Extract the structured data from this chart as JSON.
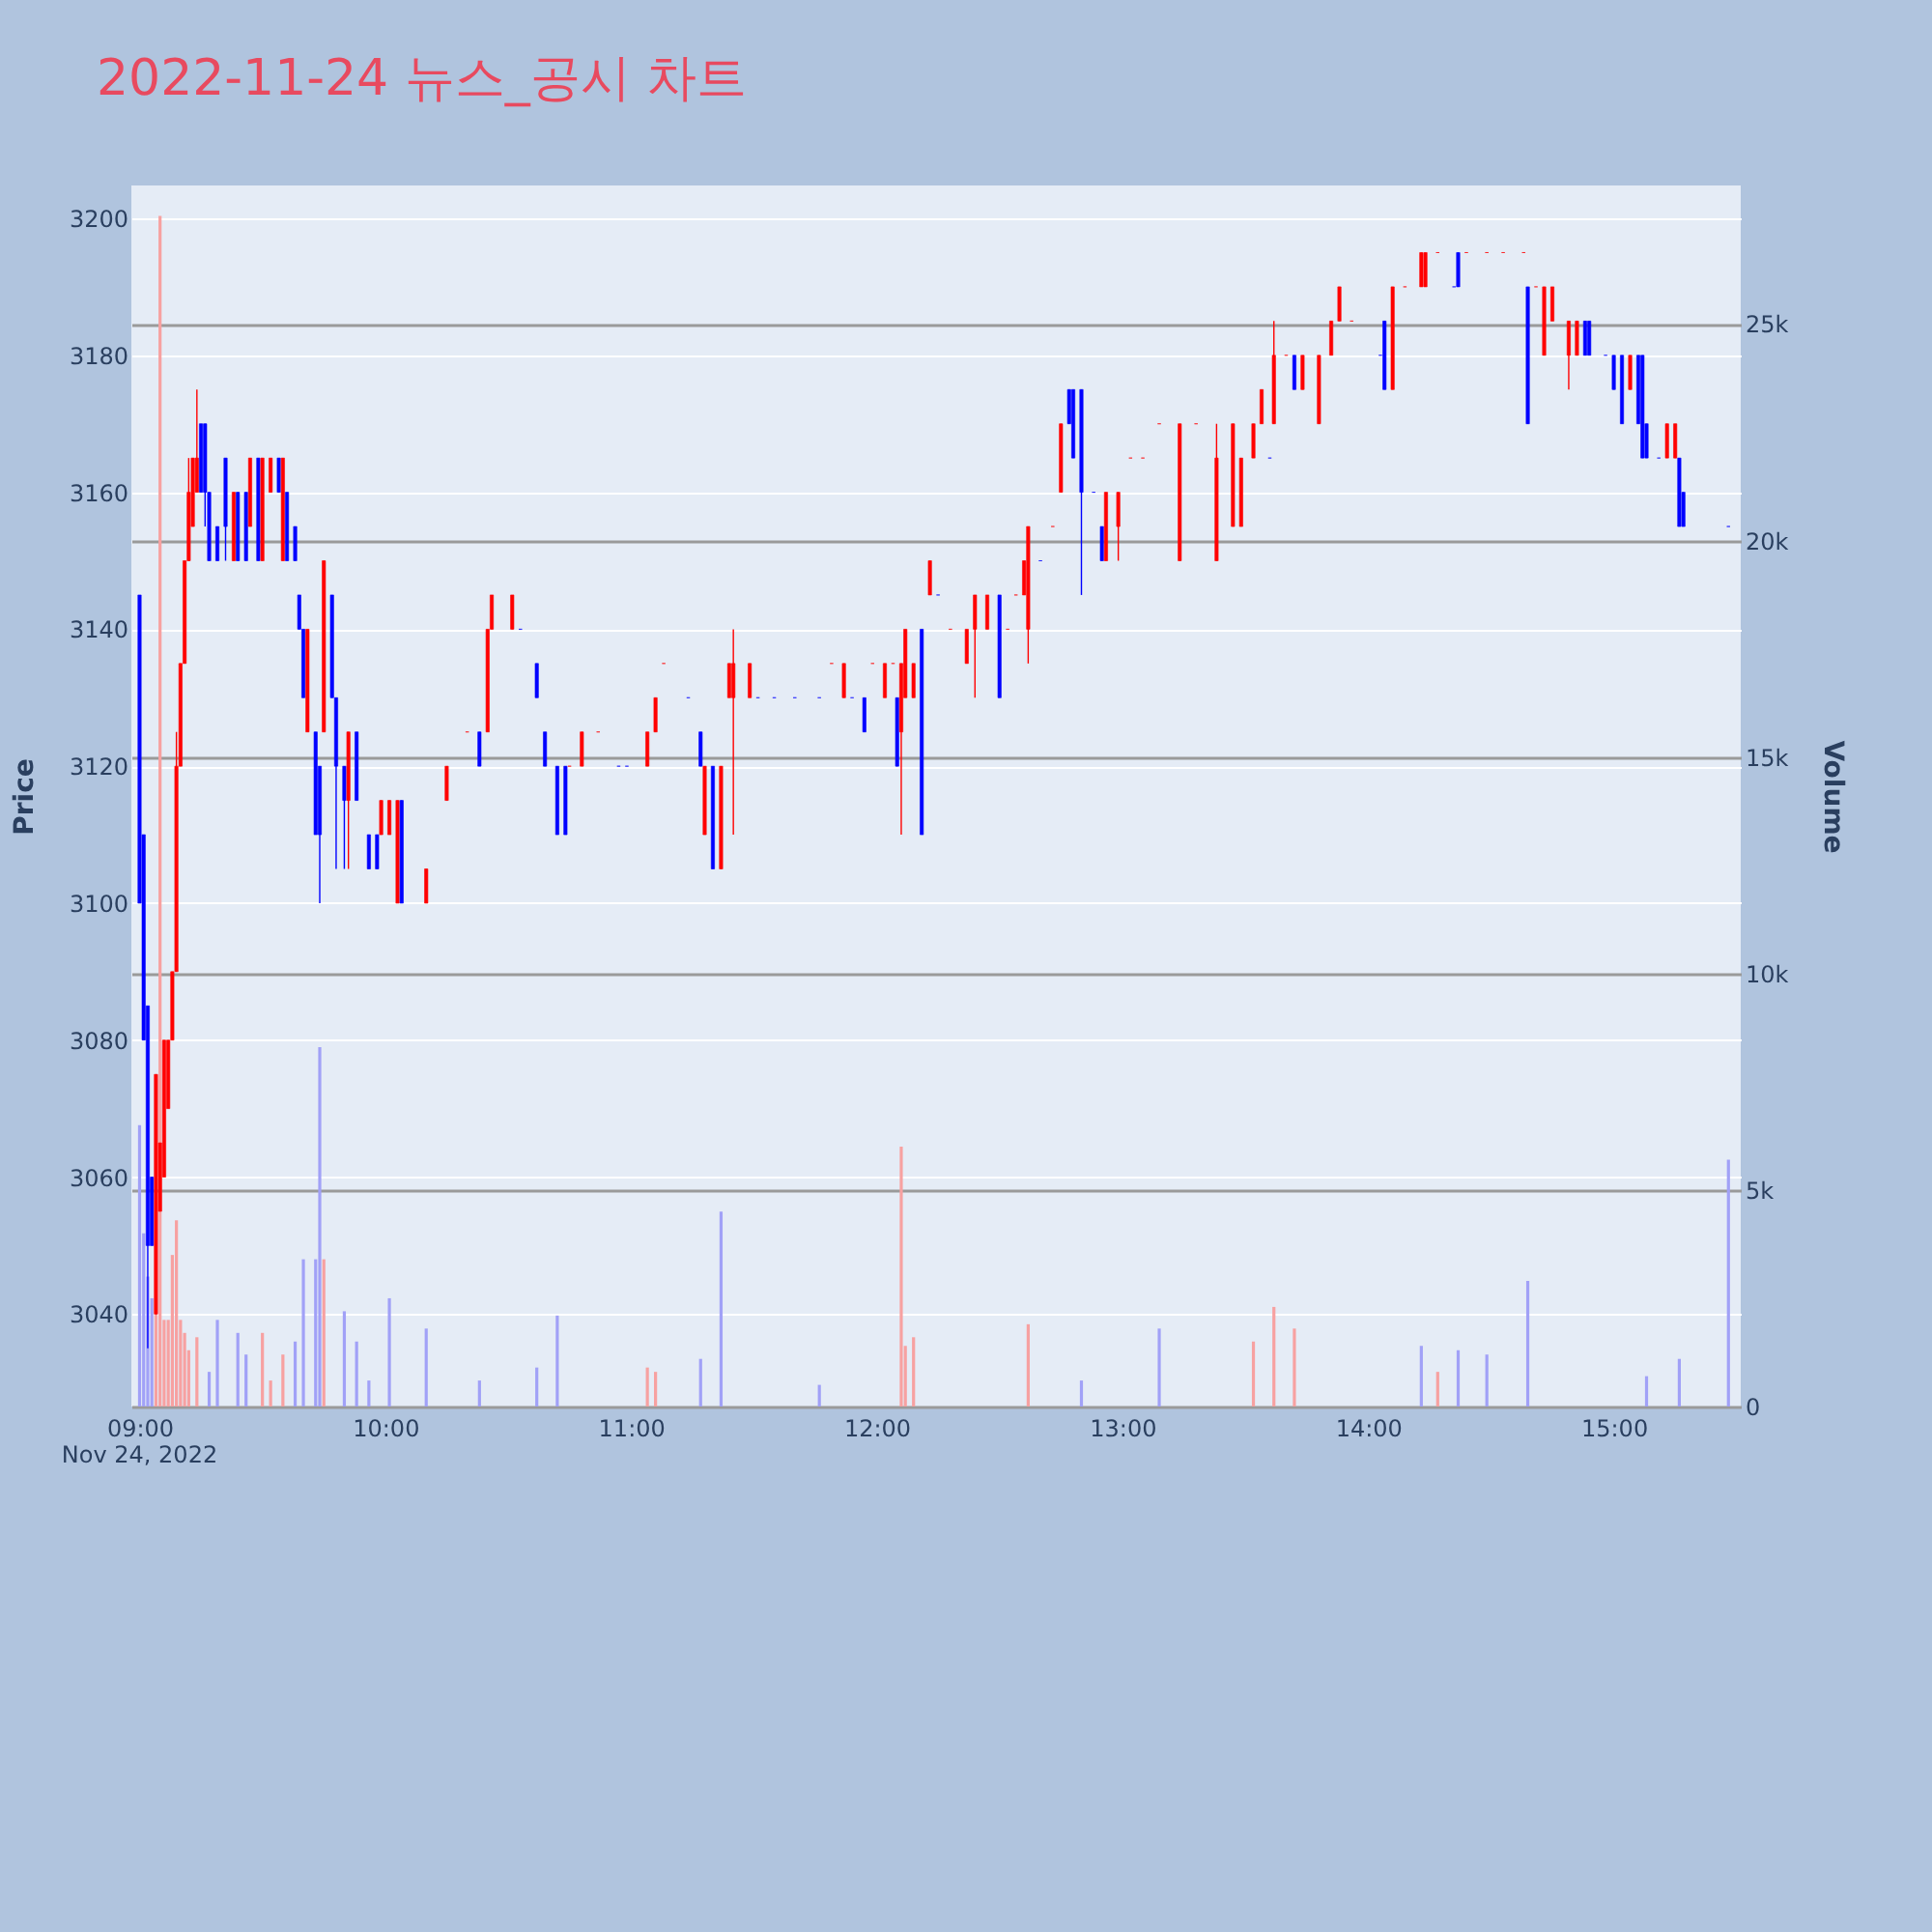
{
  "chart_data": {
    "type": "candlestick",
    "title": "2022-11-24 뉴스_공시 차트",
    "ylabel": "Price",
    "y2label": "Volume",
    "annotations": [
      "Nov 24, 2022"
    ],
    "grid": "y",
    "xlim": [
      "2022-11-24T08:58",
      "2022-11-24T15:31"
    ],
    "xticks": [
      {
        "value": "2022-11-24T09:00",
        "label": "09:00"
      },
      {
        "value": "2022-11-24T10:00",
        "label": "10:00"
      },
      {
        "value": "2022-11-24T11:00",
        "label": "11:00"
      },
      {
        "value": "2022-11-24T12:00",
        "label": "12:00"
      },
      {
        "value": "2022-11-24T13:00",
        "label": "13:00"
      },
      {
        "value": "2022-11-24T14:00",
        "label": "14:00"
      },
      {
        "value": "2022-11-24T15:00",
        "label": "15:00"
      }
    ],
    "ylim": [
      3026.5,
      3204.8
    ],
    "yticks": [
      3040,
      3060,
      3080,
      3100,
      3120,
      3140,
      3160,
      3180,
      3200
    ],
    "y2lim": [
      0,
      28200
    ],
    "y2ticks": [
      {
        "value": 0,
        "label": "0"
      },
      {
        "value": 5000,
        "label": "5k"
      },
      {
        "value": 10000,
        "label": "10k"
      },
      {
        "value": 15000,
        "label": "15k"
      },
      {
        "value": 20000,
        "label": "20k"
      },
      {
        "value": 25000,
        "label": "25k"
      }
    ],
    "x": [
      "2022-11-24T09:00",
      "2022-11-24T09:01",
      "2022-11-24T09:02",
      "2022-11-24T09:03",
      "2022-11-24T09:04",
      "2022-11-24T09:05",
      "2022-11-24T09:06",
      "2022-11-24T09:07",
      "2022-11-24T09:08",
      "2022-11-24T09:09",
      "2022-11-24T09:10",
      "2022-11-24T09:11",
      "2022-11-24T09:12",
      "2022-11-24T09:13",
      "2022-11-24T09:14",
      "2022-11-24T09:15",
      "2022-11-24T09:16",
      "2022-11-24T09:17",
      "2022-11-24T09:19",
      "2022-11-24T09:21",
      "2022-11-24T09:23",
      "2022-11-24T09:24",
      "2022-11-24T09:26",
      "2022-11-24T09:27",
      "2022-11-24T09:29",
      "2022-11-24T09:30",
      "2022-11-24T09:32",
      "2022-11-24T09:34",
      "2022-11-24T09:35",
      "2022-11-24T09:36",
      "2022-11-24T09:38",
      "2022-11-24T09:39",
      "2022-11-24T09:40",
      "2022-11-24T09:41",
      "2022-11-24T09:43",
      "2022-11-24T09:44",
      "2022-11-24T09:45",
      "2022-11-24T09:47",
      "2022-11-24T09:48",
      "2022-11-24T09:50",
      "2022-11-24T09:51",
      "2022-11-24T09:53",
      "2022-11-24T09:56",
      "2022-11-24T09:58",
      "2022-11-24T09:59",
      "2022-11-24T10:01",
      "2022-11-24T10:03",
      "2022-11-24T10:04",
      "2022-11-24T10:10",
      "2022-11-24T10:15",
      "2022-11-24T10:20",
      "2022-11-24T10:23",
      "2022-11-24T10:25",
      "2022-11-24T10:26",
      "2022-11-24T10:31",
      "2022-11-24T10:33",
      "2022-11-24T10:37",
      "2022-11-24T10:39",
      "2022-11-24T10:42",
      "2022-11-24T10:44",
      "2022-11-24T10:45",
      "2022-11-24T10:48",
      "2022-11-24T10:52",
      "2022-11-24T10:57",
      "2022-11-24T10:59",
      "2022-11-24T11:04",
      "2022-11-24T11:06",
      "2022-11-24T11:08",
      "2022-11-24T11:14",
      "2022-11-24T11:17",
      "2022-11-24T11:18",
      "2022-11-24T11:20",
      "2022-11-24T11:22",
      "2022-11-24T11:24",
      "2022-11-24T11:25",
      "2022-11-24T11:29",
      "2022-11-24T11:31",
      "2022-11-24T11:35",
      "2022-11-24T11:40",
      "2022-11-24T11:46",
      "2022-11-24T11:49",
      "2022-11-24T11:52",
      "2022-11-24T11:54",
      "2022-11-24T11:57",
      "2022-11-24T11:59",
      "2022-11-24T12:02",
      "2022-11-24T12:04",
      "2022-11-24T12:05",
      "2022-11-24T12:06",
      "2022-11-24T12:07",
      "2022-11-24T12:09",
      "2022-11-24T12:11",
      "2022-11-24T12:13",
      "2022-11-24T12:15",
      "2022-11-24T12:18",
      "2022-11-24T12:22",
      "2022-11-24T12:24",
      "2022-11-24T12:27",
      "2022-11-24T12:30",
      "2022-11-24T12:32",
      "2022-11-24T12:34",
      "2022-11-24T12:36",
      "2022-11-24T12:37",
      "2022-11-24T12:40",
      "2022-11-24T12:43",
      "2022-11-24T12:45",
      "2022-11-24T12:47",
      "2022-11-24T12:48",
      "2022-11-24T12:50",
      "2022-11-24T12:53",
      "2022-11-24T12:55",
      "2022-11-24T12:56",
      "2022-11-24T12:59",
      "2022-11-24T13:02",
      "2022-11-24T13:05",
      "2022-11-24T13:09",
      "2022-11-24T13:14",
      "2022-11-24T13:18",
      "2022-11-24T13:23",
      "2022-11-24T13:27",
      "2022-11-24T13:29",
      "2022-11-24T13:32",
      "2022-11-24T13:34",
      "2022-11-24T13:36",
      "2022-11-24T13:37",
      "2022-11-24T13:40",
      "2022-11-24T13:42",
      "2022-11-24T13:44",
      "2022-11-24T13:48",
      "2022-11-24T13:51",
      "2022-11-24T13:53",
      "2022-11-24T13:56",
      "2022-11-24T14:03",
      "2022-11-24T14:04",
      "2022-11-24T14:06",
      "2022-11-24T14:09",
      "2022-11-24T14:13",
      "2022-11-24T14:14",
      "2022-11-24T14:17",
      "2022-11-24T14:21",
      "2022-11-24T14:22",
      "2022-11-24T14:24",
      "2022-11-24T14:29",
      "2022-11-24T14:33",
      "2022-11-24T14:38",
      "2022-11-24T14:39",
      "2022-11-24T14:41",
      "2022-11-24T14:43",
      "2022-11-24T14:45",
      "2022-11-24T14:49",
      "2022-11-24T14:51",
      "2022-11-24T14:53",
      "2022-11-24T14:54",
      "2022-11-24T14:58",
      "2022-11-24T15:00",
      "2022-11-24T15:02",
      "2022-11-24T15:04",
      "2022-11-24T15:06",
      "2022-11-24T15:07",
      "2022-11-24T15:08",
      "2022-11-24T15:11",
      "2022-11-24T15:13",
      "2022-11-24T15:15",
      "2022-11-24T15:16",
      "2022-11-24T15:17",
      "2022-11-24T15:28"
    ],
    "ohlc": [
      [
        3145,
        3145,
        3100,
        3100
      ],
      [
        3110,
        3110,
        3080,
        3080
      ],
      [
        3085,
        3085,
        3035,
        3050
      ],
      [
        3060,
        3060,
        3050,
        3050
      ],
      [
        3040,
        3075,
        3040,
        3075
      ],
      [
        3055,
        3065,
        3055,
        3065
      ],
      [
        3060,
        3080,
        3060,
        3080
      ],
      [
        3070,
        3080,
        3070,
        3080
      ],
      [
        3080,
        3090,
        3080,
        3090
      ],
      [
        3090,
        3125,
        3090,
        3120
      ],
      [
        3120,
        3135,
        3120,
        3135
      ],
      [
        3135,
        3150,
        3135,
        3150
      ],
      [
        3150,
        3165,
        3150,
        3160
      ],
      [
        3155,
        3165,
        3155,
        3165
      ],
      [
        3160,
        3175,
        3160,
        3165
      ],
      [
        3170,
        3170,
        3160,
        3160
      ],
      [
        3170,
        3170,
        3155,
        3160
      ],
      [
        3160,
        3160,
        3150,
        3150
      ],
      [
        3155,
        3155,
        3150,
        3150
      ],
      [
        3165,
        3165,
        3150,
        3155
      ],
      [
        3150,
        3160,
        3150,
        3160
      ],
      [
        3160,
        3160,
        3150,
        3150
      ],
      [
        3160,
        3160,
        3150,
        3150
      ],
      [
        3155,
        3165,
        3155,
        3165
      ],
      [
        3165,
        3165,
        3150,
        3150
      ],
      [
        3150,
        3165,
        3150,
        3165
      ],
      [
        3160,
        3165,
        3160,
        3165
      ],
      [
        3165,
        3165,
        3160,
        3160
      ],
      [
        3150,
        3165,
        3150,
        3165
      ],
      [
        3160,
        3160,
        3150,
        3150
      ],
      [
        3155,
        3155,
        3150,
        3150
      ],
      [
        3145,
        3145,
        3140,
        3140
      ],
      [
        3140,
        3140,
        3130,
        3130
      ],
      [
        3125,
        3140,
        3125,
        3140
      ],
      [
        3125,
        3125,
        3110,
        3110
      ],
      [
        3120,
        3120,
        3100,
        3110
      ],
      [
        3125,
        3150,
        3125,
        3150
      ],
      [
        3145,
        3145,
        3130,
        3130
      ],
      [
        3130,
        3130,
        3105,
        3120
      ],
      [
        3120,
        3120,
        3105,
        3115
      ],
      [
        3115,
        3125,
        3105,
        3125
      ],
      [
        3125,
        3125,
        3115,
        3115
      ],
      [
        3110,
        3110,
        3105,
        3105
      ],
      [
        3110,
        3110,
        3105,
        3105
      ],
      [
        3110,
        3115,
        3110,
        3115
      ],
      [
        3110,
        3115,
        3110,
        3115
      ],
      [
        3100,
        3115,
        3100,
        3115
      ],
      [
        3115,
        3115,
        3100,
        3100
      ],
      [
        3100,
        3105,
        3100,
        3105
      ],
      [
        3115,
        3120,
        3115,
        3120
      ],
      [
        3125,
        3125,
        3125,
        3125
      ],
      [
        3125,
        3125,
        3120,
        3120
      ],
      [
        3125,
        3140,
        3125,
        3140
      ],
      [
        3140,
        3145,
        3140,
        3145
      ],
      [
        3140,
        3145,
        3140,
        3145
      ],
      [
        3140,
        3140,
        3140,
        3140
      ],
      [
        3135,
        3135,
        3130,
        3130
      ],
      [
        3125,
        3125,
        3120,
        3120
      ],
      [
        3120,
        3120,
        3110,
        3110
      ],
      [
        3120,
        3120,
        3110,
        3110
      ],
      [
        3120,
        3120,
        3120,
        3120
      ],
      [
        3120,
        3125,
        3120,
        3125
      ],
      [
        3125,
        3125,
        3125,
        3125
      ],
      [
        3120,
        3120,
        3120,
        3120
      ],
      [
        3120,
        3120,
        3120,
        3120
      ],
      [
        3120,
        3125,
        3120,
        3125
      ],
      [
        3125,
        3130,
        3125,
        3130
      ],
      [
        3135,
        3135,
        3135,
        3135
      ],
      [
        3130,
        3130,
        3130,
        3130
      ],
      [
        3125,
        3125,
        3120,
        3120
      ],
      [
        3110,
        3120,
        3110,
        3120
      ],
      [
        3120,
        3120,
        3105,
        3105
      ],
      [
        3105,
        3120,
        3105,
        3120
      ],
      [
        3130,
        3135,
        3130,
        3135
      ],
      [
        3130,
        3140,
        3110,
        3135
      ],
      [
        3130,
        3135,
        3130,
        3135
      ],
      [
        3130,
        3130,
        3130,
        3130
      ],
      [
        3130,
        3130,
        3130,
        3130
      ],
      [
        3130,
        3130,
        3130,
        3130
      ],
      [
        3130,
        3130,
        3130,
        3130
      ],
      [
        3135,
        3135,
        3135,
        3135
      ],
      [
        3130,
        3135,
        3130,
        3135
      ],
      [
        3130,
        3130,
        3130,
        3130
      ],
      [
        3130,
        3130,
        3125,
        3125
      ],
      [
        3135,
        3135,
        3135,
        3135
      ],
      [
        3130,
        3135,
        3130,
        3135
      ],
      [
        3135,
        3135,
        3135,
        3135
      ],
      [
        3130,
        3130,
        3120,
        3120
      ],
      [
        3125,
        3135,
        3110,
        3135
      ],
      [
        3130,
        3140,
        3130,
        3140
      ],
      [
        3130,
        3135,
        3130,
        3135
      ],
      [
        3140,
        3140,
        3110,
        3110
      ],
      [
        3145,
        3150,
        3145,
        3150
      ],
      [
        3145,
        3145,
        3145,
        3145
      ],
      [
        3140,
        3140,
        3140,
        3140
      ],
      [
        3135,
        3140,
        3135,
        3140
      ],
      [
        3140,
        3145,
        3130,
        3145
      ],
      [
        3140,
        3145,
        3140,
        3145
      ],
      [
        3145,
        3145,
        3130,
        3130
      ],
      [
        3140,
        3140,
        3140,
        3140
      ],
      [
        3145,
        3145,
        3145,
        3145
      ],
      [
        3145,
        3150,
        3145,
        3150
      ],
      [
        3140,
        3155,
        3135,
        3155
      ],
      [
        3150,
        3150,
        3150,
        3150
      ],
      [
        3155,
        3155,
        3155,
        3155
      ],
      [
        3160,
        3170,
        3160,
        3170
      ],
      [
        3175,
        3175,
        3170,
        3170
      ],
      [
        3175,
        3175,
        3165,
        3165
      ],
      [
        3175,
        3175,
        3145,
        3160
      ],
      [
        3160,
        3160,
        3160,
        3160
      ],
      [
        3155,
        3155,
        3150,
        3150
      ],
      [
        3150,
        3160,
        3150,
        3160
      ],
      [
        3155,
        3160,
        3150,
        3160
      ],
      [
        3165,
        3165,
        3165,
        3165
      ],
      [
        3165,
        3165,
        3165,
        3165
      ],
      [
        3170,
        3170,
        3170,
        3170
      ],
      [
        3150,
        3170,
        3150,
        3170
      ],
      [
        3170,
        3170,
        3170,
        3170
      ],
      [
        3150,
        3170,
        3150,
        3165
      ],
      [
        3155,
        3170,
        3155,
        3170
      ],
      [
        3155,
        3165,
        3155,
        3165
      ],
      [
        3165,
        3170,
        3165,
        3170
      ],
      [
        3170,
        3175,
        3170,
        3175
      ],
      [
        3165,
        3165,
        3165,
        3165
      ],
      [
        3170,
        3185,
        3170,
        3180
      ],
      [
        3180,
        3180,
        3180,
        3180
      ],
      [
        3180,
        3180,
        3175,
        3175
      ],
      [
        3175,
        3180,
        3175,
        3180
      ],
      [
        3170,
        3180,
        3170,
        3180
      ],
      [
        3180,
        3185,
        3180,
        3185
      ],
      [
        3185,
        3190,
        3185,
        3190
      ],
      [
        3185,
        3185,
        3185,
        3185
      ],
      [
        3180,
        3180,
        3180,
        3180
      ],
      [
        3185,
        3185,
        3175,
        3175
      ],
      [
        3175,
        3190,
        3175,
        3190
      ],
      [
        3190,
        3190,
        3190,
        3190
      ],
      [
        3190,
        3195,
        3190,
        3195
      ],
      [
        3190,
        3195,
        3190,
        3195
      ],
      [
        3195,
        3195,
        3195,
        3195
      ],
      [
        3190,
        3190,
        3190,
        3190
      ],
      [
        3195,
        3195,
        3190,
        3190
      ],
      [
        3195,
        3195,
        3195,
        3195
      ],
      [
        3195,
        3195,
        3195,
        3195
      ],
      [
        3195,
        3195,
        3195,
        3195
      ],
      [
        3195,
        3195,
        3195,
        3195
      ],
      [
        3190,
        3190,
        3170,
        3170
      ],
      [
        3190,
        3190,
        3190,
        3190
      ],
      [
        3180,
        3190,
        3180,
        3190
      ],
      [
        3185,
        3190,
        3185,
        3190
      ],
      [
        3180,
        3185,
        3175,
        3185
      ],
      [
        3180,
        3185,
        3180,
        3185
      ],
      [
        3185,
        3185,
        3180,
        3180
      ],
      [
        3185,
        3185,
        3180,
        3180
      ],
      [
        3180,
        3180,
        3180,
        3180
      ],
      [
        3180,
        3180,
        3175,
        3175
      ],
      [
        3180,
        3180,
        3170,
        3170
      ],
      [
        3175,
        3180,
        3175,
        3180
      ],
      [
        3180,
        3180,
        3170,
        3170
      ],
      [
        3180,
        3180,
        3165,
        3165
      ],
      [
        3170,
        3170,
        3165,
        3165
      ],
      [
        3165,
        3165,
        3165,
        3165
      ],
      [
        3165,
        3170,
        3165,
        3170
      ],
      [
        3165,
        3170,
        3165,
        3170
      ],
      [
        3165,
        3165,
        3155,
        3155
      ],
      [
        3160,
        3160,
        3155,
        3155
      ],
      [
        3155,
        3155,
        3155,
        3155
      ]
    ],
    "colors": [
      "#0000ff",
      "#0000ff",
      "#0000ff",
      "#0000ff",
      "#ff0000",
      "#ff0000",
      "#ff0000",
      "#ff0000",
      "#ff0000",
      "#ff0000",
      "#ff0000",
      "#ff0000",
      "#ff0000",
      "#ff0000",
      "#ff0000",
      "#0000ff",
      "#0000ff",
      "#0000ff",
      "#0000ff",
      "#0000ff",
      "#ff0000",
      "#0000ff",
      "#0000ff",
      "#ff0000",
      "#0000ff",
      "#ff0000",
      "#ff0000",
      "#0000ff",
      "#ff0000",
      "#0000ff",
      "#0000ff",
      "#0000ff",
      "#0000ff",
      "#ff0000",
      "#0000ff",
      "#0000ff",
      "#ff0000",
      "#0000ff",
      "#0000ff",
      "#0000ff",
      "#ff0000",
      "#0000ff",
      "#0000ff",
      "#0000ff",
      "#ff0000",
      "#ff0000",
      "#ff0000",
      "#0000ff",
      "#ff0000",
      "#ff0000",
      "#ff0000",
      "#0000ff",
      "#ff0000",
      "#ff0000",
      "#ff0000",
      "#0000ff",
      "#0000ff",
      "#0000ff",
      "#0000ff",
      "#0000ff",
      "#ff0000",
      "#ff0000",
      "#ff0000",
      "#0000ff",
      "#0000ff",
      "#ff0000",
      "#ff0000",
      "#ff0000",
      "#0000ff",
      "#0000ff",
      "#ff0000",
      "#0000ff",
      "#ff0000",
      "#ff0000",
      "#ff0000",
      "#ff0000",
      "#0000ff",
      "#0000ff",
      "#0000ff",
      "#0000ff",
      "#ff0000",
      "#ff0000",
      "#0000ff",
      "#0000ff",
      "#ff0000",
      "#ff0000",
      "#ff0000",
      "#0000ff",
      "#ff0000",
      "#ff0000",
      "#ff0000",
      "#0000ff",
      "#ff0000",
      "#0000ff",
      "#ff0000",
      "#ff0000",
      "#ff0000",
      "#ff0000",
      "#0000ff",
      "#ff0000",
      "#ff0000",
      "#ff0000",
      "#ff0000",
      "#0000ff",
      "#ff0000",
      "#ff0000",
      "#0000ff",
      "#0000ff",
      "#0000ff",
      "#0000ff",
      "#0000ff",
      "#ff0000",
      "#ff0000",
      "#ff0000",
      "#ff0000",
      "#ff0000",
      "#ff0000",
      "#ff0000",
      "#ff0000",
      "#ff0000",
      "#ff0000",
      "#ff0000",
      "#ff0000",
      "#0000ff",
      "#ff0000",
      "#ff0000",
      "#0000ff",
      "#ff0000",
      "#ff0000",
      "#ff0000",
      "#ff0000",
      "#ff0000",
      "#0000ff",
      "#0000ff",
      "#ff0000",
      "#ff0000",
      "#ff0000",
      "#ff0000",
      "#ff0000",
      "#0000ff",
      "#0000ff",
      "#ff0000",
      "#ff0000",
      "#ff0000",
      "#ff0000",
      "#0000ff",
      "#ff0000",
      "#ff0000",
      "#ff0000",
      "#ff0000",
      "#ff0000",
      "#0000ff",
      "#0000ff",
      "#0000ff",
      "#0000ff",
      "#0000ff",
      "#ff0000",
      "#0000ff",
      "#0000ff",
      "#0000ff",
      "#0000ff",
      "#ff0000",
      "#ff0000",
      "#0000ff",
      "#0000ff",
      "#0000ff"
    ],
    "series": [
      {
        "type": "bar",
        "axis": "y2",
        "x": [
          "2022-11-24T09:00",
          "2022-11-24T09:01",
          "2022-11-24T09:02",
          "2022-11-24T09:03",
          "2022-11-24T09:04",
          "2022-11-24T09:05",
          "2022-11-24T09:06",
          "2022-11-24T09:07",
          "2022-11-24T09:08",
          "2022-11-24T09:09",
          "2022-11-24T09:10",
          "2022-11-24T09:11",
          "2022-11-24T09:12",
          "2022-11-24T09:14",
          "2022-11-24T09:17",
          "2022-11-24T09:19",
          "2022-11-24T09:24",
          "2022-11-24T09:26",
          "2022-11-24T09:30",
          "2022-11-24T09:32",
          "2022-11-24T09:35",
          "2022-11-24T09:38",
          "2022-11-24T09:40",
          "2022-11-24T09:43",
          "2022-11-24T09:44",
          "2022-11-24T09:45",
          "2022-11-24T09:50",
          "2022-11-24T09:53",
          "2022-11-24T09:56",
          "2022-11-24T10:01",
          "2022-11-24T10:10",
          "2022-11-24T10:23",
          "2022-11-24T10:37",
          "2022-11-24T10:42",
          "2022-11-24T11:04",
          "2022-11-24T11:06",
          "2022-11-24T11:17",
          "2022-11-24T11:22",
          "2022-11-24T11:46",
          "2022-11-24T12:06",
          "2022-11-24T12:07",
          "2022-11-24T12:09",
          "2022-11-24T12:37",
          "2022-11-24T12:50",
          "2022-11-24T13:09",
          "2022-11-24T13:32",
          "2022-11-24T13:37",
          "2022-11-24T13:42",
          "2022-11-24T14:13",
          "2022-11-24T14:17",
          "2022-11-24T14:22",
          "2022-11-24T14:29",
          "2022-11-24T14:39",
          "2022-11-24T15:08",
          "2022-11-24T15:16",
          "2022-11-24T15:28"
        ],
        "values": [
          6500,
          4000,
          3000,
          2500,
          2500,
          27500,
          2000,
          2000,
          3500,
          4300,
          2000,
          1700,
          1300,
          1600,
          800,
          2000,
          1700,
          1200,
          1700,
          600,
          1200,
          1500,
          3400,
          3400,
          8300,
          3400,
          2200,
          1500,
          600,
          2500,
          1800,
          600,
          900,
          2100,
          900,
          800,
          1100,
          4500,
          500,
          6000,
          1400,
          1600,
          1900,
          600,
          1800,
          1500,
          2300,
          1800,
          1400,
          800,
          1300,
          1200,
          2900,
          700,
          1100,
          5700
        ],
        "colors": [
          "#a1a1f7",
          "#a1a1f7",
          "#a1a1f7",
          "#a1a1f7",
          "#f7a1a1",
          "#f7a1a1",
          "#f7a1a1",
          "#f7a1a1",
          "#f7a1a1",
          "#f7a1a1",
          "#f7a1a1",
          "#f7a1a1",
          "#f7a1a1",
          "#f7a1a1",
          "#a1a1f7",
          "#a1a1f7",
          "#a1a1f7",
          "#a1a1f7",
          "#f7a1a1",
          "#f7a1a1",
          "#f7a1a1",
          "#a1a1f7",
          "#a1a1f7",
          "#a1a1f7",
          "#a1a1f7",
          "#f7a1a1",
          "#a1a1f7",
          "#a1a1f7",
          "#a1a1f7",
          "#a1a1f7",
          "#a1a1f7",
          "#a1a1f7",
          "#a1a1f7",
          "#a1a1f7",
          "#f7a1a1",
          "#f7a1a1",
          "#a1a1f7",
          "#a1a1f7",
          "#a1a1f7",
          "#f7a1a1",
          "#f7a1a1",
          "#f7a1a1",
          "#f7a1a1",
          "#a1a1f7",
          "#a1a1f7",
          "#f7a1a1",
          "#f7a1a1",
          "#f7a1a1",
          "#a1a1f7",
          "#f7a1a1",
          "#a1a1f7",
          "#a1a1f7",
          "#a1a1f7",
          "#a1a1f7",
          "#a1a1f7",
          "#a1a1f7"
        ]
      }
    ]
  }
}
